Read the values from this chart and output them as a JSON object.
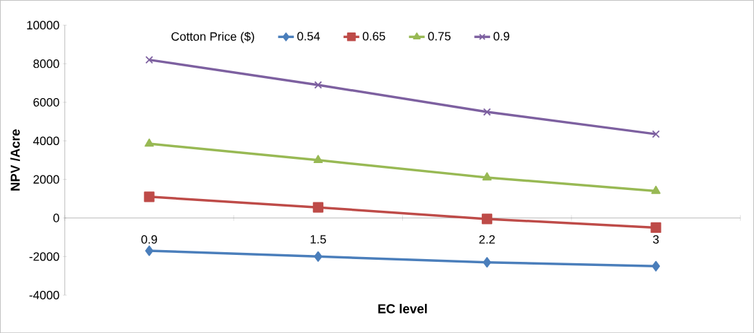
{
  "chart_data": {
    "type": "line",
    "xlabel": "EC level",
    "ylabel": "NPV /Acre",
    "legend_title": "Cotton Price ($)",
    "legend": "top",
    "grid": false,
    "categories": [
      "0.9",
      "1.5",
      "2.2",
      "3"
    ],
    "ylim": [
      -4000,
      10000
    ],
    "yticks": [
      -4000,
      -2000,
      0,
      2000,
      4000,
      6000,
      8000,
      10000
    ],
    "series": [
      {
        "name": "0.54",
        "color": "#4a7ebb",
        "marker": "diamond",
        "values": [
          -1700,
          -2000,
          -2300,
          -2500
        ]
      },
      {
        "name": "0.65",
        "color": "#be4b48",
        "marker": "square",
        "values": [
          1100,
          550,
          -50,
          -500
        ]
      },
      {
        "name": "0.75",
        "color": "#98b954",
        "marker": "triangle",
        "values": [
          3850,
          3000,
          2100,
          1400
        ]
      },
      {
        "name": "0.9",
        "color": "#7d60a0",
        "marker": "cross",
        "values": [
          8200,
          6900,
          5500,
          4350
        ]
      }
    ]
  }
}
